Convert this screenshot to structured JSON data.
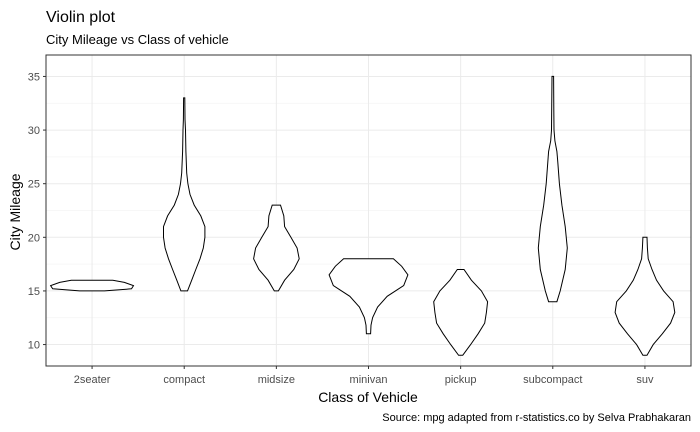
{
  "chart_data": {
    "type": "violin",
    "title": "Violin plot",
    "subtitle": "City Mileage vs Class of vehicle",
    "xlabel": "Class of Vehicle",
    "ylabel": "City Mileage",
    "caption": "Source: mpg adapted from r-statistics.co by Selva Prabhakaran",
    "ylim": [
      8,
      37
    ],
    "yticks": [
      10,
      15,
      20,
      25,
      30,
      35
    ],
    "grid": true,
    "categories": [
      "2seater",
      "compact",
      "midsize",
      "minivan",
      "pickup",
      "subcompact",
      "suv"
    ],
    "violins": [
      {
        "category": "2seater",
        "profile": [
          [
            15,
            0.3
          ],
          [
            15.2,
            0.95
          ],
          [
            15.5,
            1.0
          ],
          [
            15.8,
            0.78
          ],
          [
            16,
            0.5
          ]
        ]
      },
      {
        "category": "compact",
        "profile": [
          [
            15,
            0.08
          ],
          [
            16,
            0.18
          ],
          [
            17,
            0.28
          ],
          [
            18,
            0.38
          ],
          [
            19,
            0.46
          ],
          [
            20,
            0.5
          ],
          [
            21,
            0.5
          ],
          [
            22,
            0.4
          ],
          [
            23,
            0.24
          ],
          [
            24,
            0.14
          ],
          [
            25,
            0.09
          ],
          [
            26,
            0.06
          ],
          [
            28,
            0.04
          ],
          [
            30,
            0.03
          ],
          [
            31,
            0.02
          ],
          [
            33,
            0.015
          ]
        ]
      },
      {
        "category": "midsize",
        "profile": [
          [
            15,
            0.05
          ],
          [
            16,
            0.2
          ],
          [
            17,
            0.42
          ],
          [
            18,
            0.55
          ],
          [
            19,
            0.5
          ],
          [
            20,
            0.35
          ],
          [
            21,
            0.2
          ],
          [
            22,
            0.18
          ],
          [
            23,
            0.1
          ]
        ]
      },
      {
        "category": "minivan",
        "profile": [
          [
            11,
            0.05
          ],
          [
            11.8,
            0.06
          ],
          [
            12.5,
            0.1
          ],
          [
            13.5,
            0.22
          ],
          [
            14.5,
            0.45
          ],
          [
            15.5,
            0.85
          ],
          [
            16.5,
            0.95
          ],
          [
            17.3,
            0.8
          ],
          [
            18,
            0.6
          ]
        ]
      },
      {
        "category": "pickup",
        "profile": [
          [
            9,
            0.05
          ],
          [
            10,
            0.24
          ],
          [
            11,
            0.42
          ],
          [
            12,
            0.58
          ],
          [
            13,
            0.62
          ],
          [
            14,
            0.65
          ],
          [
            15,
            0.5
          ],
          [
            16,
            0.26
          ],
          [
            17,
            0.08
          ]
        ]
      },
      {
        "category": "subcompact",
        "profile": [
          [
            14,
            0.1
          ],
          [
            15,
            0.18
          ],
          [
            17,
            0.3
          ],
          [
            19,
            0.35
          ],
          [
            21,
            0.3
          ],
          [
            23,
            0.22
          ],
          [
            25,
            0.16
          ],
          [
            27,
            0.12
          ],
          [
            28,
            0.1
          ],
          [
            29,
            0.05
          ],
          [
            30,
            0.03
          ],
          [
            32,
            0.025
          ],
          [
            35,
            0.02
          ]
        ]
      },
      {
        "category": "suv",
        "profile": [
          [
            9,
            0.05
          ],
          [
            10,
            0.2
          ],
          [
            11,
            0.42
          ],
          [
            12,
            0.62
          ],
          [
            13,
            0.72
          ],
          [
            14,
            0.68
          ],
          [
            15,
            0.45
          ],
          [
            16,
            0.28
          ],
          [
            17,
            0.17
          ],
          [
            18,
            0.08
          ],
          [
            19,
            0.06
          ],
          [
            20,
            0.05
          ]
        ]
      }
    ]
  }
}
